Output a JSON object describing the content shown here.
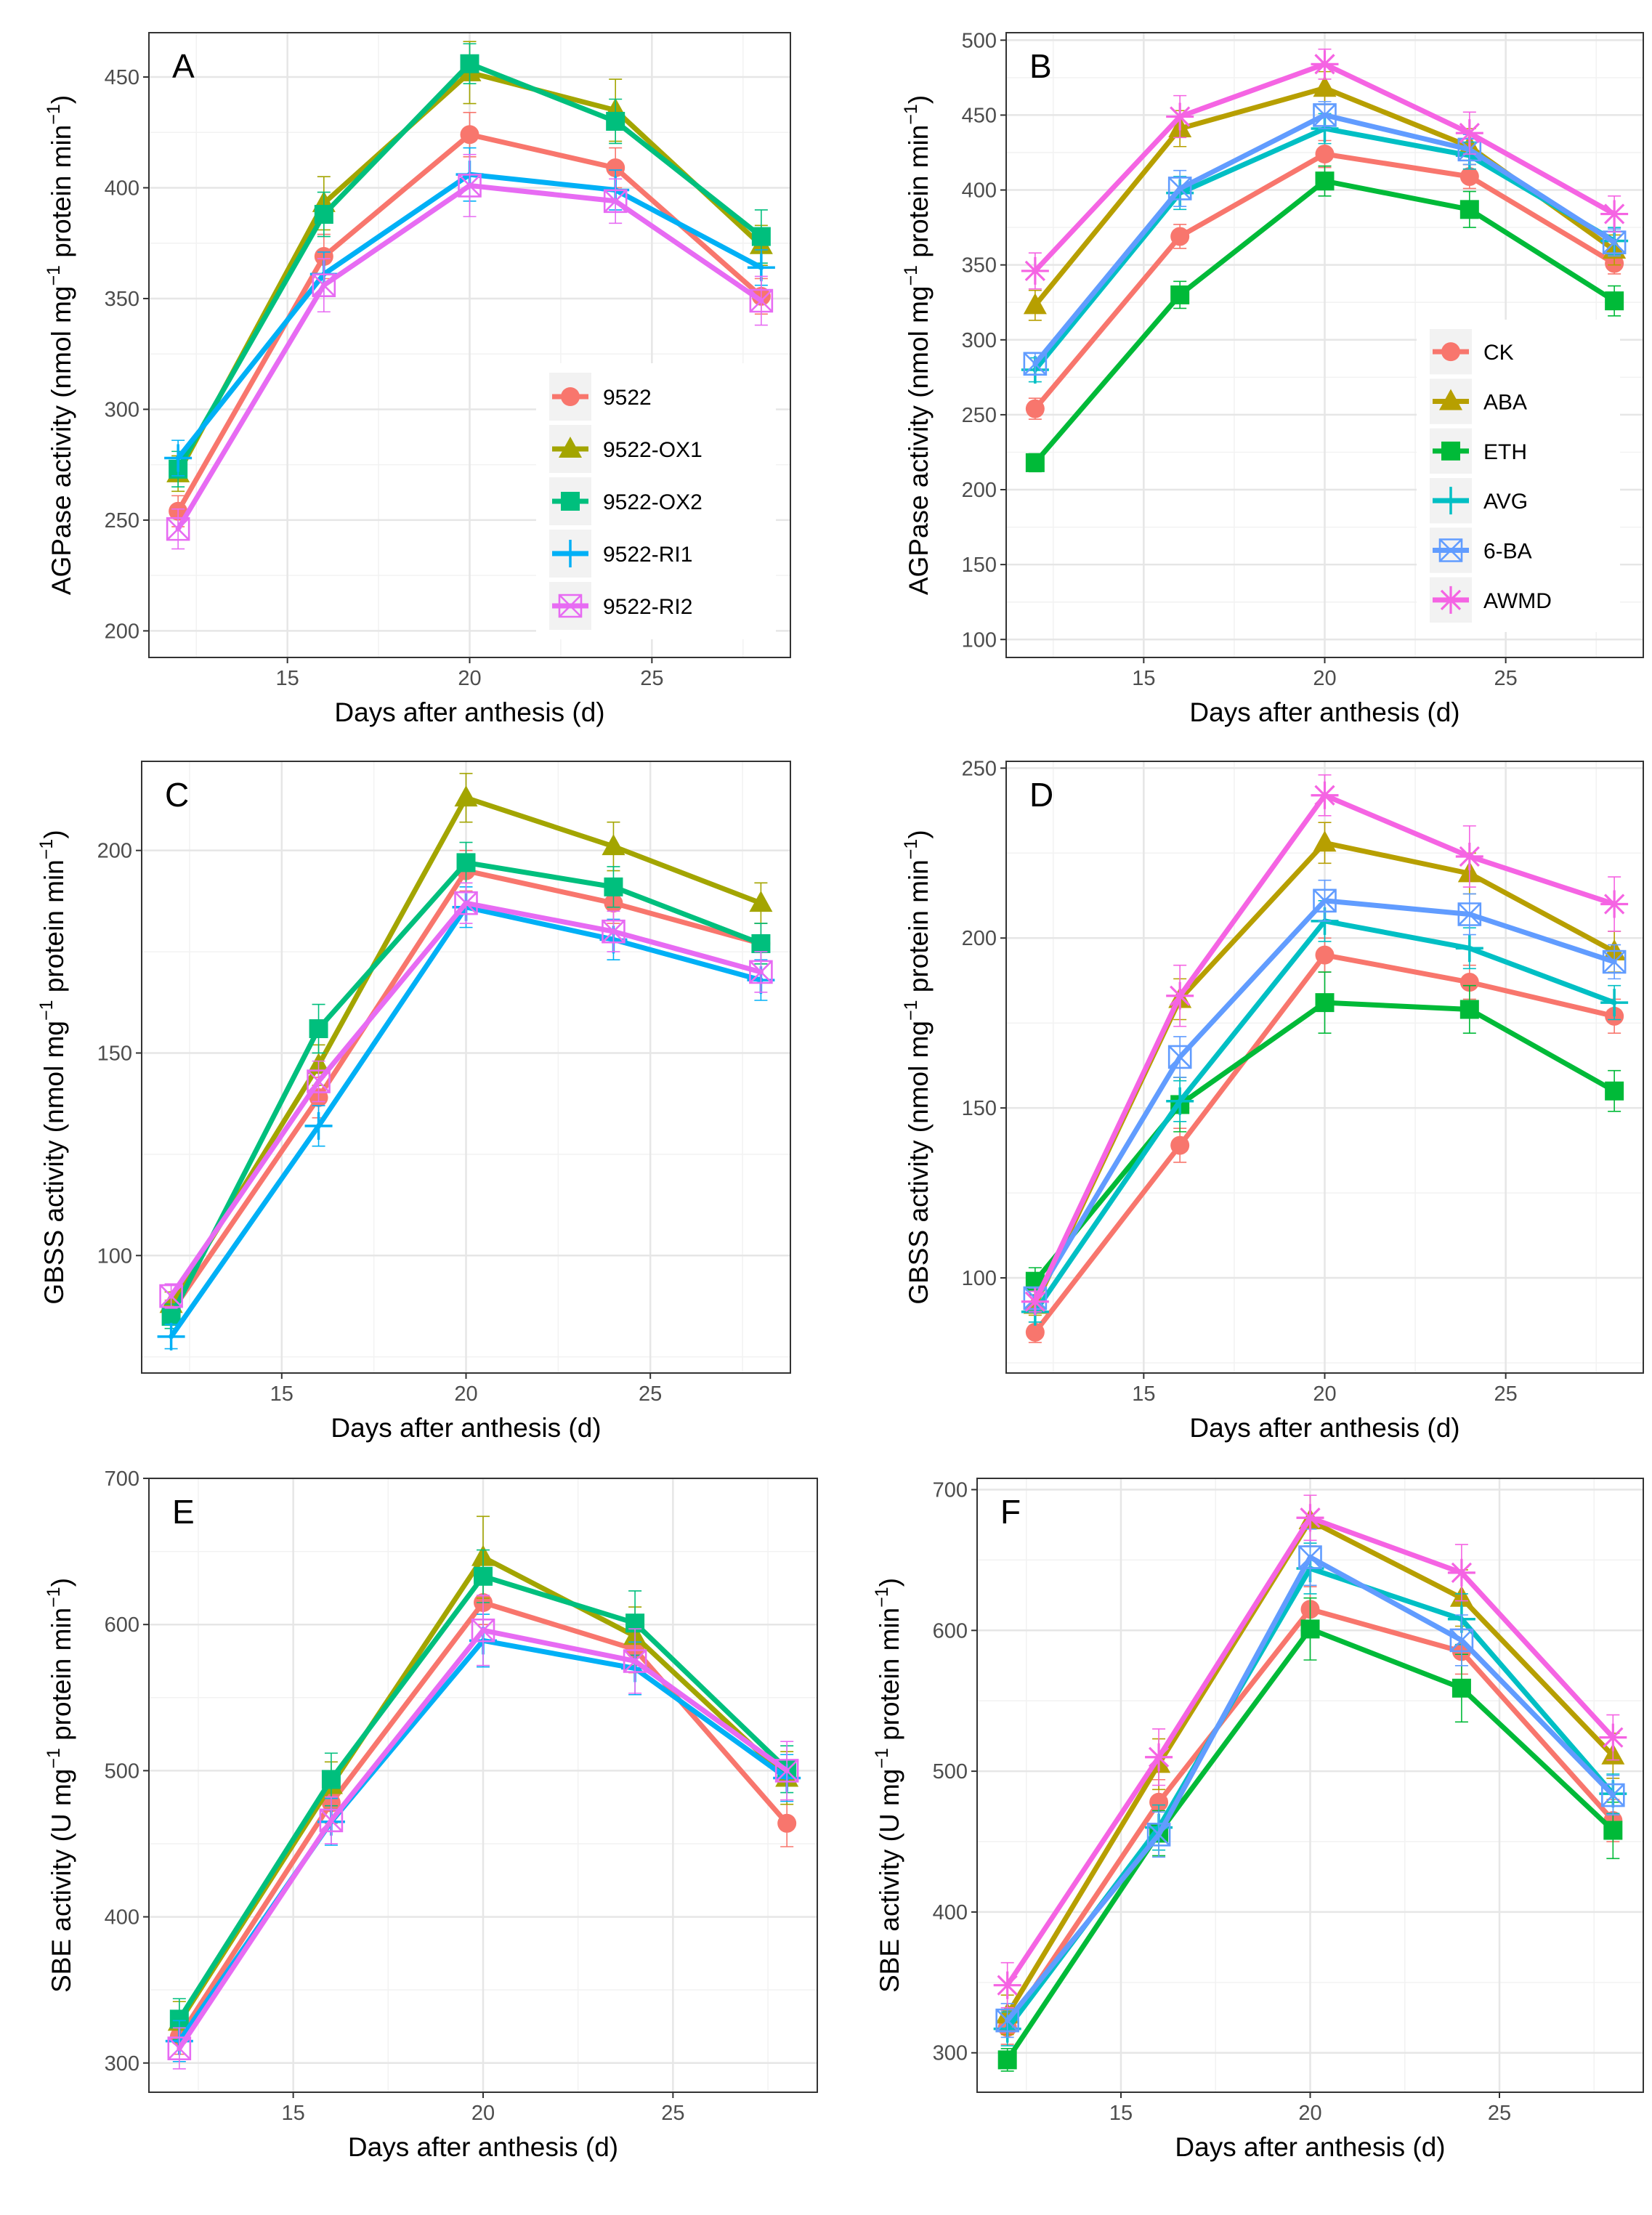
{
  "figure": {
    "xlabel": "Days after anthesis (d)"
  },
  "colors": {
    "9522": "#F8766D",
    "9522-OX1": "#A3A500",
    "9522-OX2": "#00BF7D",
    "9522-RI1": "#00B0F6",
    "9522-RI2": "#E76BF3",
    "CK": "#F8766D",
    "ABA": "#B79F00",
    "ETH": "#00BA38",
    "AVG": "#00BFC4",
    "6-BA": "#619CFF",
    "AWMD": "#F564E3"
  },
  "chart_data": [
    {
      "panel": "A",
      "type": "line",
      "ylabel": {
        "pre": "AGPase activity  (nmol mg",
        "sup": "−1",
        "mid": " protein min",
        "sup2": "−1",
        "post": ")"
      },
      "x": [
        12,
        16,
        20,
        24,
        28
      ],
      "xlim": [
        11.2,
        28.8
      ],
      "ylim": [
        188,
        470
      ],
      "xticks": [
        15,
        20,
        25
      ],
      "yticks": [
        200,
        250,
        300,
        350,
        400,
        450
      ],
      "xtick_labels": [
        "15",
        "20",
        "25"
      ],
      "ytick_labels": [
        "200",
        "250",
        "300",
        "350",
        "400",
        "450"
      ],
      "legend_position": "bottom-right",
      "series": [
        {
          "name": "9522",
          "marker": "circle",
          "values": [
            254,
            369,
            424,
            409,
            351
          ],
          "err": [
            7,
            10,
            10,
            9,
            8
          ]
        },
        {
          "name": "9522-OX1",
          "marker": "triangle",
          "values": [
            271,
            393,
            452,
            435,
            374
          ],
          "err": [
            8,
            12,
            14,
            14,
            9
          ]
        },
        {
          "name": "9522-OX2",
          "marker": "square",
          "values": [
            273,
            388,
            456,
            430,
            378
          ],
          "err": [
            8,
            10,
            9,
            10,
            12
          ]
        },
        {
          "name": "9522-RI1",
          "marker": "plus",
          "values": [
            278,
            361,
            406,
            399,
            364
          ],
          "err": [
            8,
            10,
            12,
            9,
            8
          ]
        },
        {
          "name": "9522-RI2",
          "marker": "boxx",
          "values": [
            246,
            356,
            401,
            394,
            349
          ],
          "err": [
            9,
            12,
            14,
            10,
            11
          ]
        }
      ]
    },
    {
      "panel": "B",
      "type": "line",
      "ylabel": {
        "pre": "AGPase activity  (nmol mg",
        "sup": "−1",
        "mid": " protein min",
        "sup2": "−1",
        "post": ")"
      },
      "x": [
        12,
        16,
        20,
        24,
        28
      ],
      "xlim": [
        11.2,
        28.8
      ],
      "ylim": [
        88,
        505
      ],
      "xticks": [
        15,
        20,
        25
      ],
      "yticks": [
        100,
        150,
        200,
        250,
        300,
        350,
        400,
        450,
        500
      ],
      "xtick_labels": [
        "15",
        "20",
        "25"
      ],
      "ytick_labels": [
        "100",
        "150",
        "200",
        "250",
        "300",
        "350",
        "400",
        "450",
        "500"
      ],
      "legend_position": "right",
      "series": [
        {
          "name": "CK",
          "marker": "circle",
          "values": [
            254,
            369,
            424,
            409,
            351
          ],
          "err": [
            7,
            8,
            9,
            8,
            7
          ]
        },
        {
          "name": "ABA",
          "marker": "triangle",
          "values": [
            323,
            441,
            468,
            429,
            360
          ],
          "err": [
            10,
            12,
            11,
            12,
            10
          ]
        },
        {
          "name": "ETH",
          "marker": "square",
          "values": [
            218,
            330,
            406,
            387,
            326
          ],
          "err": [
            6,
            9,
            10,
            12,
            10
          ]
        },
        {
          "name": "AVG",
          "marker": "plus",
          "values": [
            280,
            398,
            441,
            423,
            366
          ],
          "err": [
            8,
            11,
            10,
            9,
            9
          ]
        },
        {
          "name": "6-BA",
          "marker": "boxx",
          "values": [
            284,
            401,
            450,
            427,
            365
          ],
          "err": [
            7,
            12,
            9,
            10,
            9
          ]
        },
        {
          "name": "AWMD",
          "marker": "asterisk",
          "values": [
            346,
            449,
            484,
            438,
            384
          ],
          "err": [
            12,
            14,
            10,
            14,
            12
          ]
        }
      ]
    },
    {
      "panel": "C",
      "type": "line",
      "ylabel": {
        "pre": "GBSS activity  (nmol mg",
        "sup": "−1",
        "mid": " protein min",
        "sup2": "−1",
        "post": ")"
      },
      "x": [
        12,
        16,
        20,
        24,
        28
      ],
      "xlim": [
        11.2,
        28.8
      ],
      "ylim": [
        71,
        222
      ],
      "xticks": [
        15,
        20,
        25
      ],
      "yticks": [
        100,
        150,
        200
      ],
      "xtick_labels": [
        "15",
        "20",
        "25"
      ],
      "ytick_labels": [
        "100",
        "150",
        "200"
      ],
      "legend_position": "none",
      "series": [
        {
          "name": "9522",
          "marker": "circle",
          "values": [
            86,
            139,
            195,
            187,
            177
          ],
          "err": [
            3,
            5,
            5,
            5,
            5
          ]
        },
        {
          "name": "9522-OX1",
          "marker": "triangle",
          "values": [
            88,
            147,
            213,
            201,
            187
          ],
          "err": [
            3,
            5,
            6,
            6,
            5
          ]
        },
        {
          "name": "9522-OX2",
          "marker": "square",
          "values": [
            85,
            156,
            197,
            191,
            177
          ],
          "err": [
            3,
            6,
            5,
            5,
            5
          ]
        },
        {
          "name": "9522-RI1",
          "marker": "plus",
          "values": [
            80,
            132,
            186,
            178,
            168
          ],
          "err": [
            3,
            5,
            5,
            5,
            5
          ]
        },
        {
          "name": "9522-RI2",
          "marker": "boxx",
          "values": [
            90,
            143,
            187,
            180,
            170
          ],
          "err": [
            3,
            5,
            5,
            5,
            5
          ]
        }
      ]
    },
    {
      "panel": "D",
      "type": "line",
      "ylabel": {
        "pre": "GBSS activity  (nmol mg",
        "sup": "−1",
        "mid": " protein min",
        "sup2": "−1",
        "post": ")"
      },
      "x": [
        12,
        16,
        20,
        24,
        28
      ],
      "xlim": [
        11.2,
        28.8
      ],
      "ylim": [
        72,
        252
      ],
      "xticks": [
        15,
        20,
        25
      ],
      "yticks": [
        100,
        150,
        200,
        250
      ],
      "xtick_labels": [
        "15",
        "20",
        "25"
      ],
      "ytick_labels": [
        "100",
        "150",
        "200",
        "250"
      ],
      "legend_position": "none",
      "series": [
        {
          "name": "CK",
          "marker": "circle",
          "values": [
            84,
            139,
            195,
            187,
            177
          ],
          "err": [
            3,
            5,
            5,
            5,
            5
          ]
        },
        {
          "name": "ABA",
          "marker": "triangle",
          "values": [
            92,
            182,
            228,
            219,
            196
          ],
          "err": [
            3,
            6,
            6,
            6,
            6
          ]
        },
        {
          "name": "ETH",
          "marker": "square",
          "values": [
            99,
            151,
            181,
            179,
            155
          ],
          "err": [
            4,
            8,
            9,
            7,
            6
          ]
        },
        {
          "name": "AVG",
          "marker": "plus",
          "values": [
            90,
            152,
            205,
            197,
            181
          ],
          "err": [
            3,
            6,
            6,
            6,
            5
          ]
        },
        {
          "name": "6-BA",
          "marker": "boxx",
          "values": [
            94,
            165,
            211,
            207,
            193
          ],
          "err": [
            3,
            6,
            6,
            6,
            5
          ]
        },
        {
          "name": "AWMD",
          "marker": "asterisk",
          "values": [
            93,
            183,
            242,
            224,
            210
          ],
          "err": [
            3,
            9,
            6,
            9,
            8
          ]
        }
      ]
    },
    {
      "panel": "E",
      "type": "line",
      "ylabel": {
        "pre": "SBE activity  (U mg",
        "sup": "−1",
        "mid": " protein min",
        "sup2": "−1",
        "post": ")"
      },
      "x": [
        12,
        16,
        20,
        24,
        28
      ],
      "xlim": [
        11.2,
        28.8
      ],
      "ylim": [
        280,
        700
      ],
      "xticks": [
        15,
        20,
        25
      ],
      "yticks": [
        300,
        400,
        500,
        600,
        700
      ],
      "xtick_labels": [
        "15",
        "20",
        "25"
      ],
      "ytick_labels": [
        "300",
        "400",
        "500",
        "600",
        "700"
      ],
      "legend_position": "none",
      "series": [
        {
          "name": "9522",
          "marker": "circle",
          "values": [
            318,
            478,
            615,
            583,
            464
          ],
          "err": [
            12,
            14,
            15,
            16,
            16
          ]
        },
        {
          "name": "9522-OX1",
          "marker": "triangle",
          "values": [
            328,
            490,
            646,
            592,
            495
          ],
          "err": [
            14,
            16,
            28,
            20,
            18
          ]
        },
        {
          "name": "9522-OX2",
          "marker": "square",
          "values": [
            330,
            494,
            633,
            601,
            501
          ],
          "err": [
            14,
            18,
            18,
            22,
            16
          ]
        },
        {
          "name": "9522-RI1",
          "marker": "plus",
          "values": [
            315,
            465,
            589,
            570,
            495
          ],
          "err": [
            14,
            16,
            18,
            18,
            16
          ]
        },
        {
          "name": "9522-RI2",
          "marker": "boxx",
          "values": [
            310,
            466,
            596,
            575,
            500
          ],
          "err": [
            14,
            16,
            24,
            22,
            20
          ]
        }
      ]
    },
    {
      "panel": "F",
      "type": "line",
      "ylabel": {
        "pre": "SBE activity  (U mg",
        "sup": "−1",
        "mid": " protein min",
        "sup2": "−1",
        "post": ")"
      },
      "x": [
        12,
        16,
        20,
        24,
        28
      ],
      "xlim": [
        11.2,
        28.8
      ],
      "ylim": [
        272,
        708
      ],
      "xticks": [
        15,
        20,
        25
      ],
      "yticks": [
        300,
        400,
        500,
        600,
        700
      ],
      "xtick_labels": [
        "15",
        "20",
        "25"
      ],
      "ytick_labels": [
        "300",
        "400",
        "500",
        "600",
        "700"
      ],
      "legend_position": "none",
      "series": [
        {
          "name": "CK",
          "marker": "circle",
          "values": [
            318,
            478,
            615,
            585,
            465
          ],
          "err": [
            12,
            16,
            16,
            16,
            15
          ]
        },
        {
          "name": "ABA",
          "marker": "triangle",
          "values": [
            327,
            505,
            678,
            623,
            511
          ],
          "err": [
            14,
            18,
            18,
            20,
            16
          ]
        },
        {
          "name": "ETH",
          "marker": "square",
          "values": [
            295,
            456,
            601,
            559,
            458
          ],
          "err": [
            8,
            16,
            22,
            24,
            20
          ]
        },
        {
          "name": "AVG",
          "marker": "plus",
          "values": [
            317,
            460,
            644,
            608,
            484
          ],
          "err": [
            12,
            16,
            18,
            18,
            14
          ]
        },
        {
          "name": "6-BA",
          "marker": "boxx",
          "values": [
            323,
            455,
            652,
            593,
            483
          ],
          "err": [
            12,
            16,
            20,
            18,
            14
          ]
        },
        {
          "name": "AWMD",
          "marker": "asterisk",
          "values": [
            348,
            510,
            680,
            641,
            524
          ],
          "err": [
            16,
            20,
            16,
            20,
            16
          ]
        }
      ]
    }
  ]
}
